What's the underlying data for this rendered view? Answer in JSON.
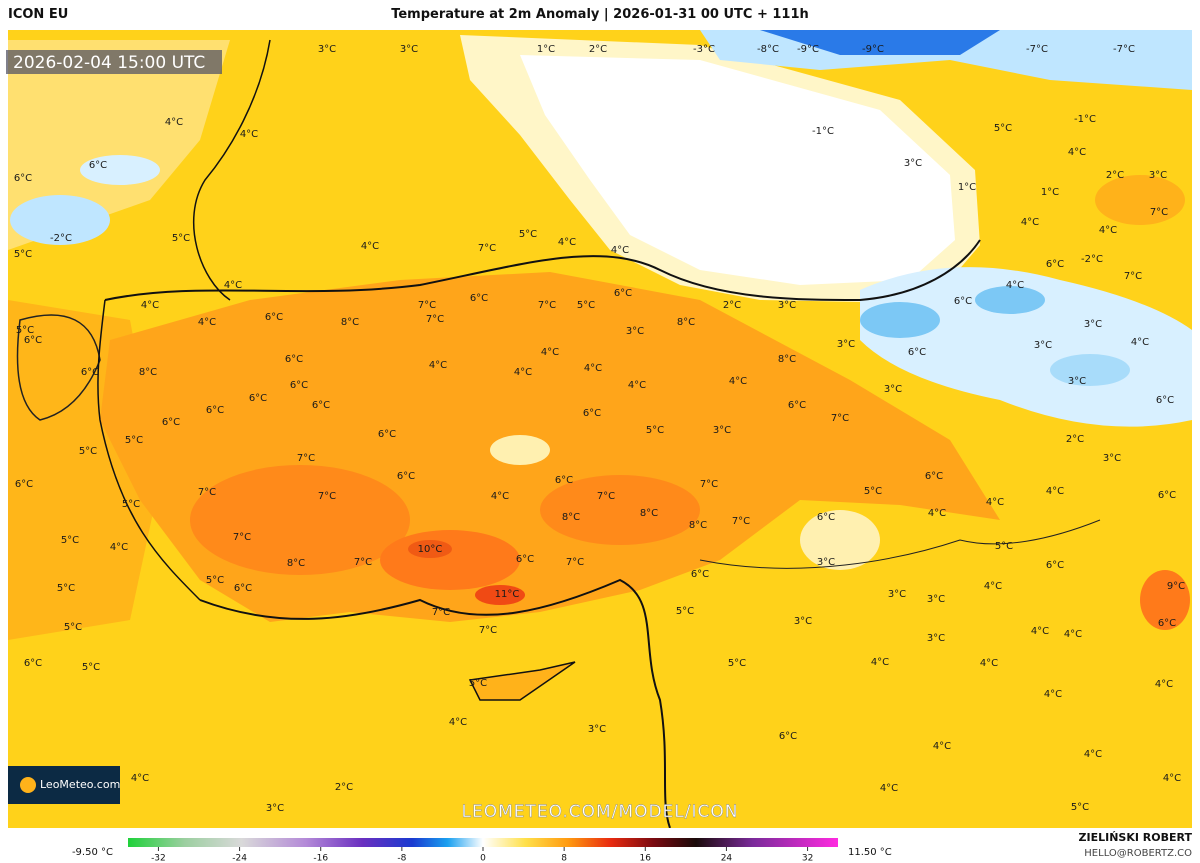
{
  "header": {
    "model": "ICON EU",
    "title": "Temperature at 2m Anomaly | 2026-01-31 00 UTC + 111h"
  },
  "timestamp": "2026-02-04 15:00 UTC",
  "logo": "LeoMeteo.com",
  "watermark": "LEOMETEO.COM/MODEL/ICON",
  "credits": {
    "author": "ZIELIŃSKI ROBERT",
    "email": "HELLO@ROBERTZ.CO"
  },
  "colorbar": {
    "min_label": "-9.50 °C",
    "max_label": "11.50 °C",
    "lim": [
      -35,
      35
    ],
    "ticks": [
      -32,
      -24,
      -16,
      -8,
      0,
      8,
      16,
      24,
      32
    ]
  },
  "map_labels": [
    "3°C",
    "3°C",
    "1°C",
    "2°C",
    "-3°C",
    "-8°C",
    "-9°C",
    "-9°C",
    "-7°C",
    "-7°C",
    "-1°C",
    "5°C",
    "-1°C",
    "4°C",
    "4°C",
    "6°C",
    "6°C",
    "4°C",
    "2°C",
    "3°C",
    "1°C",
    "1°C",
    "3°C",
    "4°C",
    "7°C",
    "4°C",
    "-2°C",
    "5°C",
    "4°C",
    "5°C",
    "4°C",
    "4°C",
    "7°C",
    "5°C",
    "-2°C",
    "6°C",
    "7°C",
    "4°C",
    "4°C",
    "4°C",
    "6°C",
    "8°C",
    "7°C",
    "7°C",
    "6°C",
    "7°C",
    "5°C",
    "6°C",
    "2°C",
    "3°C",
    "8°C",
    "3°C",
    "4°C",
    "6°C",
    "4°C",
    "3°C",
    "4°C",
    "5°C",
    "6°C",
    "6°C",
    "8°C",
    "6°C",
    "6°C",
    "4°C",
    "4°C",
    "4°C",
    "4°C",
    "4°C",
    "8°C",
    "3°C",
    "6°C",
    "3°C",
    "3°C",
    "3°C",
    "6°C",
    "6°C",
    "6°C",
    "6°C",
    "5°C",
    "3°C",
    "6°C",
    "7°C",
    "6°C",
    "2°C",
    "3°C",
    "6°C",
    "5°C",
    "5°C",
    "6°C",
    "6°C",
    "7°C",
    "6°C",
    "4°C",
    "6°C",
    "7°C",
    "7°C",
    "6°C",
    "5°C",
    "4°C",
    "4°C",
    "4°C",
    "6°C",
    "7°C",
    "7°C",
    "5°C",
    "8°C",
    "8°C",
    "8°C",
    "7°C",
    "6°C",
    "7°C",
    "5°C",
    "4°C",
    "10°C",
    "7°C",
    "6°C",
    "5°C",
    "6°C",
    "8°C",
    "7°C",
    "3°C",
    "6°C",
    "6°C",
    "5°C",
    "5°C",
    "9°C",
    "3°C",
    "3°C",
    "4°C",
    "11°C",
    "7°C",
    "5°C",
    "7°C",
    "3°C",
    "5°C",
    "4°C",
    "6°C",
    "4°C",
    "3°C",
    "6°C",
    "5°C",
    "5°C",
    "4°C",
    "4°C",
    "4°C",
    "5°C",
    "4°C",
    "3°C",
    "4°C",
    "6°C",
    "4°C",
    "4°C",
    "4°C",
    "2°C",
    "4°C",
    "4°C",
    "3°C",
    "5°C"
  ]
}
